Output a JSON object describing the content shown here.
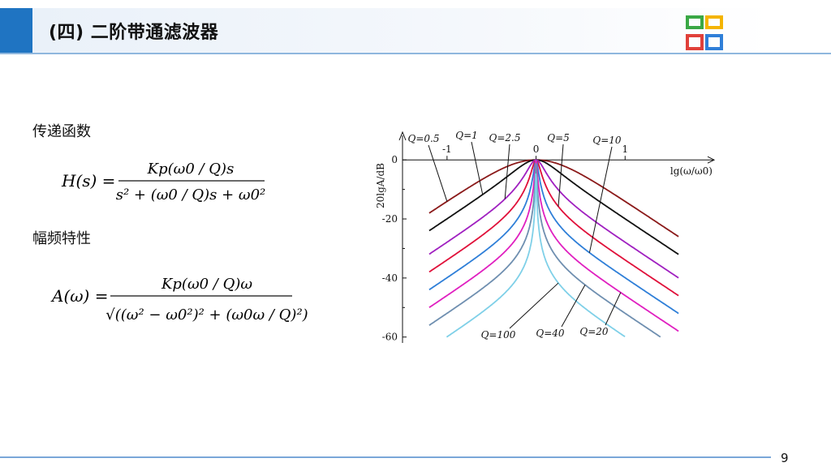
{
  "header": {
    "title": "(四) 二阶带通滤波器",
    "logo_icon": "colored-squares-logo-icon",
    "accent_color": "#1f74c2"
  },
  "sections": {
    "transfer_function_label": "传递函数",
    "amplitude_label": "幅频特性"
  },
  "formulas": {
    "transfer": {
      "lhs": "H(s) =",
      "numerator": "Kp(ω0 / Q)s",
      "denominator": "s² + (ω0 / Q)s + ω0²"
    },
    "amplitude": {
      "lhs": "A(ω) =",
      "numerator": "Kp(ω0 / Q)ω",
      "denominator": "√((ω² − ω0²)² + (ω0ω / Q)²)"
    }
  },
  "chart_data": {
    "type": "line",
    "ylabel": "20lgA/dB",
    "xlabel": "lg(ω/ω0)",
    "xlim": [
      -1.5,
      2.0
    ],
    "ylim": [
      -62,
      5
    ],
    "xticks": [
      {
        "value": -1,
        "label": "-1"
      },
      {
        "value": 0,
        "label": "0"
      },
      {
        "value": 1,
        "label": "1"
      }
    ],
    "yticks": [
      {
        "value": 0,
        "label": "0"
      },
      {
        "value": -20,
        "label": "-20"
      },
      {
        "value": -40,
        "label": "-40"
      },
      {
        "value": -60,
        "label": "-60"
      }
    ],
    "series": [
      {
        "name": "Q=0.5",
        "Q": 0.5,
        "color": "#8b1a1a"
      },
      {
        "name": "Q=1",
        "Q": 1,
        "color": "#111111"
      },
      {
        "name": "Q=2.5",
        "Q": 2.5,
        "color": "#a020c0"
      },
      {
        "name": "Q=5",
        "Q": 5,
        "color": "#e0103a"
      },
      {
        "name": "Q=10",
        "Q": 10,
        "color": "#2f7fd8"
      },
      {
        "name": "Q=20",
        "Q": 20,
        "color": "#e020c0"
      },
      {
        "name": "Q=40",
        "Q": 40,
        "color": "#6f8fb0"
      },
      {
        "name": "Q=100",
        "Q": 100,
        "color": "#7fd0e8"
      }
    ],
    "annotations": [
      {
        "text": "Q=0.5",
        "series": "Q=0.5"
      },
      {
        "text": "Q=1",
        "series": "Q=1"
      },
      {
        "text": "Q=2.5",
        "series": "Q=2.5"
      },
      {
        "text": "Q=5",
        "series": "Q=5"
      },
      {
        "text": "Q=10",
        "series": "Q=10"
      },
      {
        "text": "Q=100",
        "series": "Q=100"
      },
      {
        "text": "Q=40",
        "series": "Q=40"
      },
      {
        "text": "Q=20",
        "series": "Q=20"
      }
    ]
  },
  "footer": {
    "page_number": "9"
  }
}
